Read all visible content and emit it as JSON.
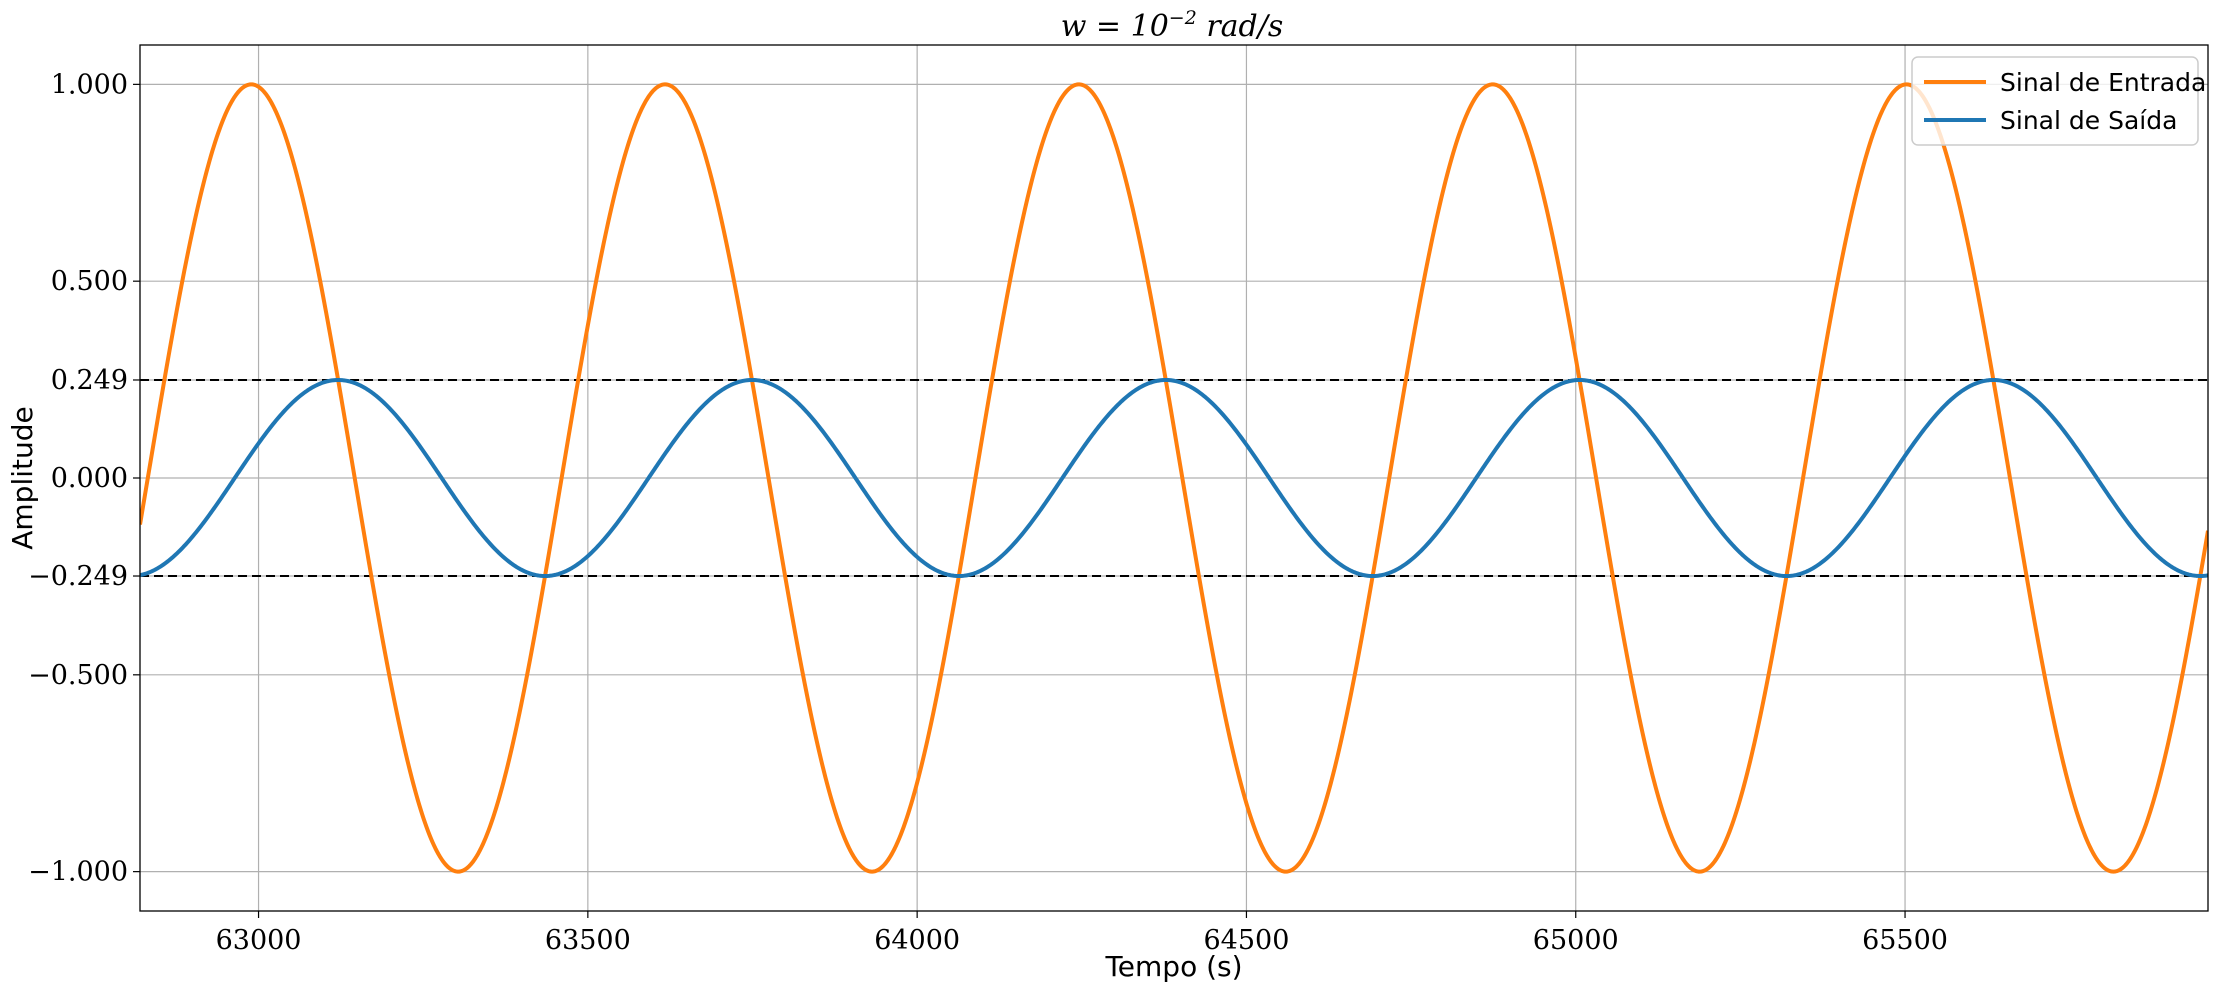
{
  "chart_data": {
    "type": "line",
    "title_parts": {
      "prefix": "w = 10",
      "exponent": "−2",
      "suffix": " rad/s"
    },
    "xlabel": "Tempo (s)",
    "ylabel": "Amplitude",
    "xlim": [
      62820,
      65960
    ],
    "ylim": [
      -1.1,
      1.1
    ],
    "xticks": [
      63000,
      63500,
      64000,
      64500,
      65000,
      65500
    ],
    "yticks": [
      1.0,
      0.5,
      0.249,
      0.0,
      -0.249,
      -0.5,
      -1.0
    ],
    "ytick_labels": [
      "1.000",
      "0.500",
      "0.249",
      "0.000",
      "−0.249",
      "−0.500",
      "−1.000"
    ],
    "grid": true,
    "legend_position": "top-right",
    "series": [
      {
        "name": "Sinal de Entrada",
        "color": "#ff7f0e",
        "function": "sin",
        "amplitude": 1.0,
        "omega": 0.01,
        "phase": 0.0
      },
      {
        "name": "Sinal de Saída",
        "color": "#1f77b4",
        "function": "sin",
        "amplitude": 0.249,
        "omega": 0.01,
        "phase": -1.32
      }
    ],
    "reference_lines": [
      {
        "y": 0.249,
        "color": "#000000",
        "style": "dashed"
      },
      {
        "y": -0.249,
        "color": "#000000",
        "style": "dashed"
      }
    ]
  }
}
